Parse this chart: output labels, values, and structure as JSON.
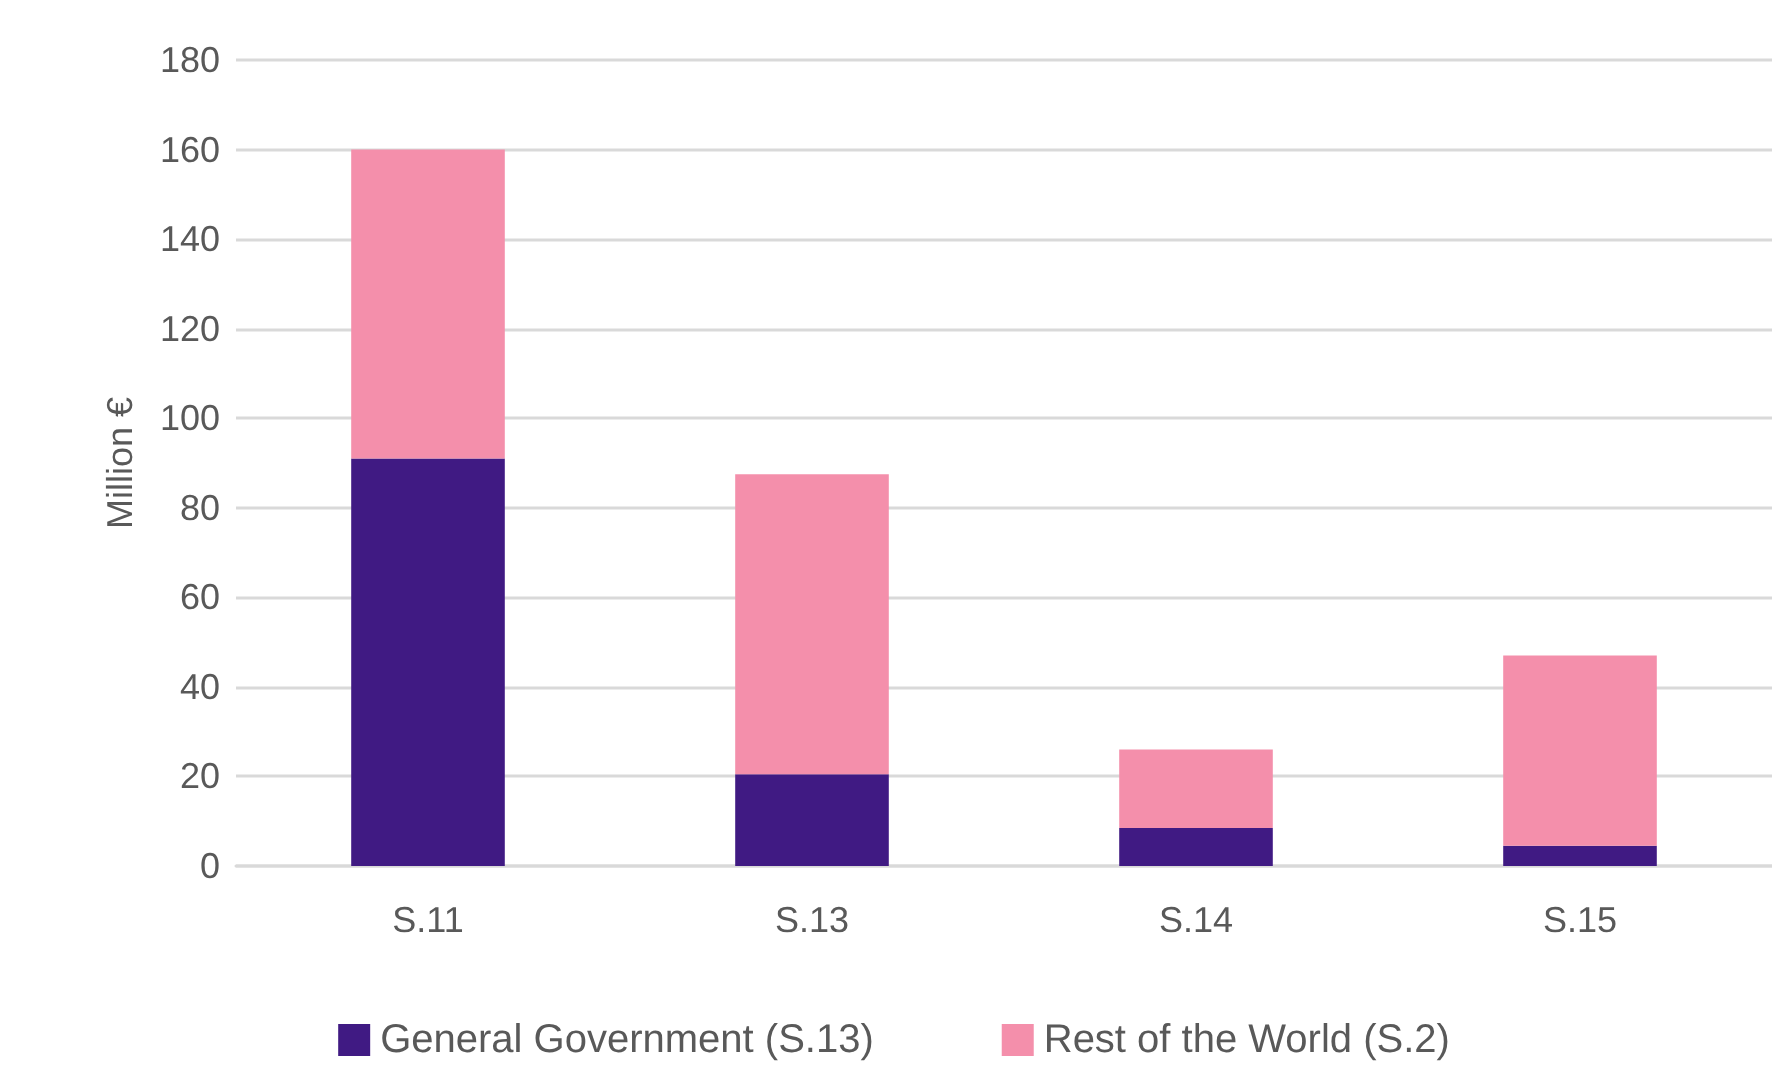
{
  "chart_data": {
    "type": "bar",
    "stacked": true,
    "ylabel": "Million €",
    "categories": [
      "S.11",
      "S.13",
      "S.14",
      "S.15"
    ],
    "series": [
      {
        "name": "General Government (S.13)",
        "color": "#401a83",
        "values": [
          91,
          20.5,
          8.5,
          4.5
        ]
      },
      {
        "name": "Rest of the World (S.2)",
        "color": "#f48fab",
        "values": [
          69,
          67,
          17.5,
          42.5
        ]
      }
    ],
    "ylim": [
      0,
      180
    ],
    "yticks": [
      0,
      20,
      40,
      60,
      80,
      100,
      120,
      140,
      160,
      180
    ],
    "grid": "y",
    "legend": "bottom"
  }
}
